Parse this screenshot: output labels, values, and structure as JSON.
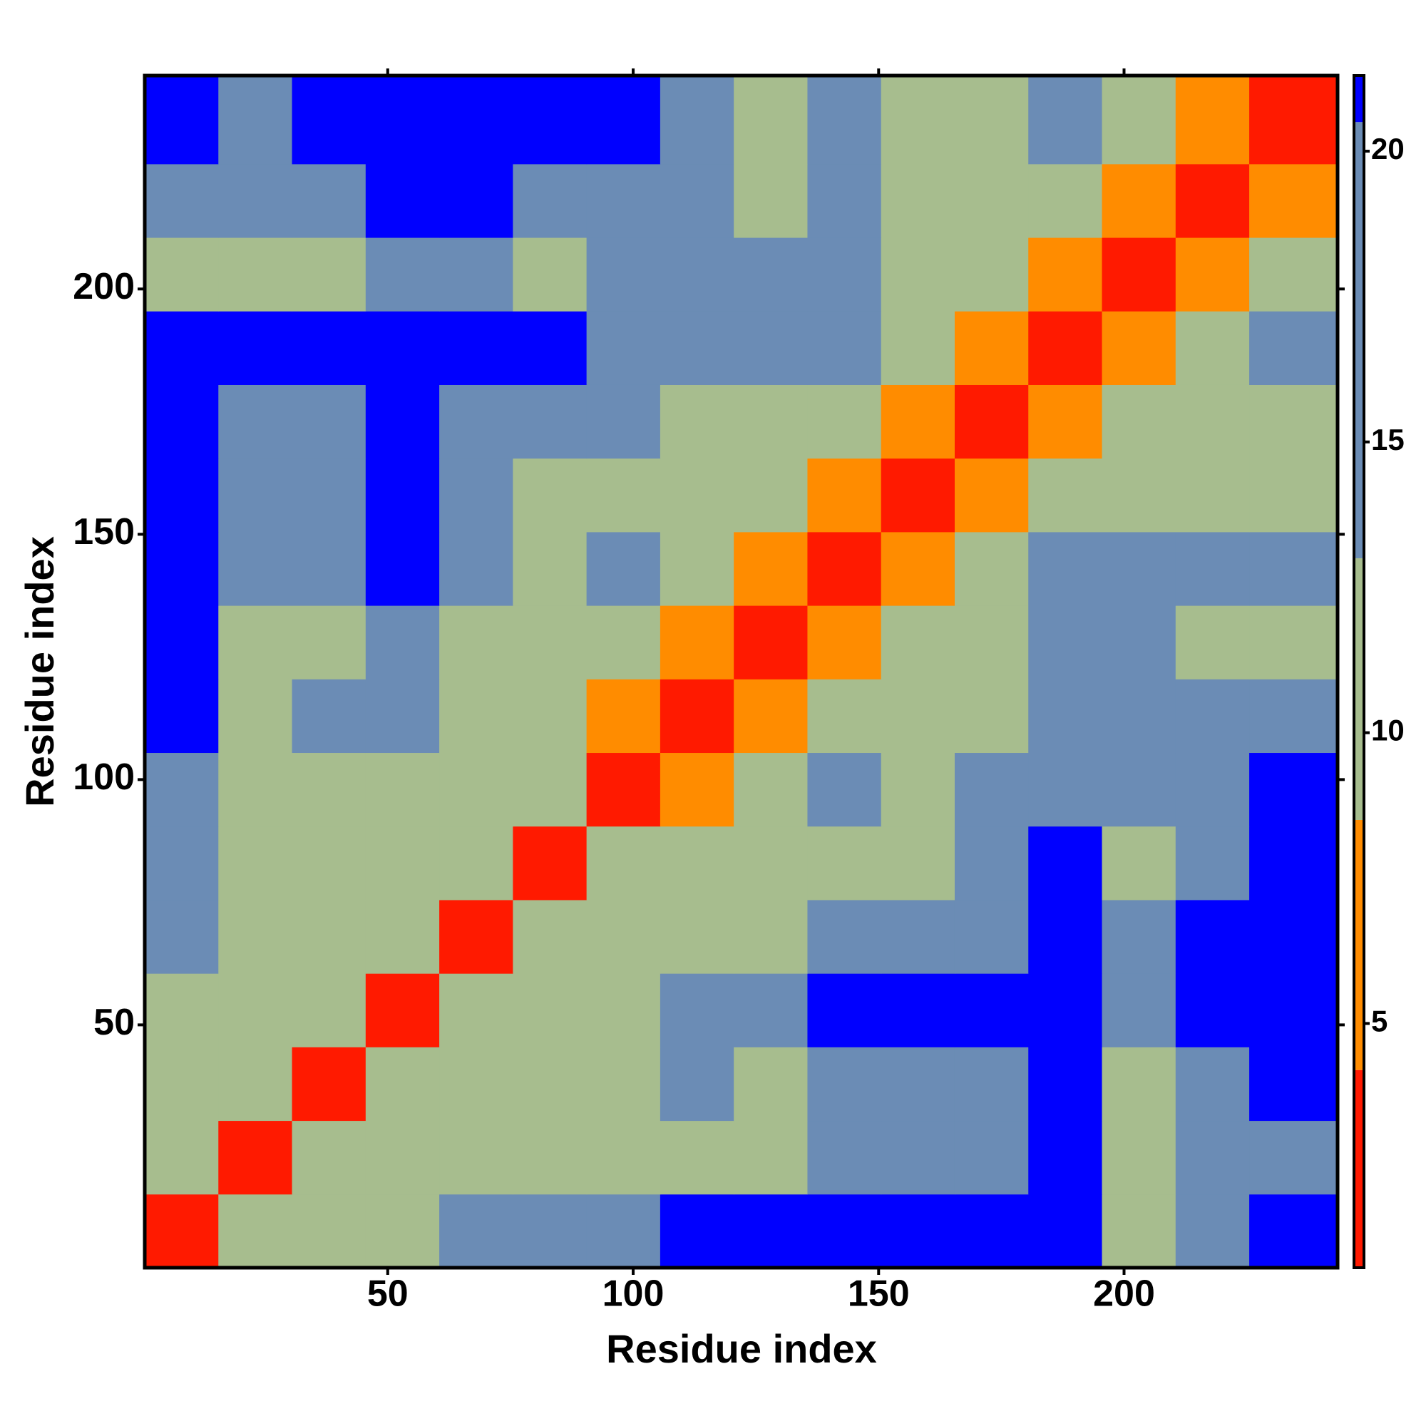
{
  "chart_data": {
    "type": "heatmap",
    "x_label": "Residue index",
    "y_label": "Residue index",
    "x_bins": [
      0.5,
      15.5,
      30.5,
      45.5,
      60.5,
      75.5,
      90.5,
      105.5,
      120.5,
      135.5,
      150.5,
      165.5,
      180.5,
      195.5,
      210.5,
      225.5,
      243.5
    ],
    "y_bins": [
      0.5,
      15.5,
      30.5,
      45.5,
      60.5,
      75.5,
      90.5,
      105.5,
      120.5,
      135.5,
      150.5,
      165.5,
      180.5,
      195.5,
      210.5,
      225.5,
      243.5
    ],
    "values": [
      [
        4,
        9,
        11,
        12,
        15,
        16,
        18,
        21,
        21,
        21,
        21,
        21,
        21,
        12,
        15,
        21
      ],
      [
        9,
        4,
        9,
        9,
        11,
        9,
        12,
        13,
        13,
        17,
        17,
        14,
        21,
        11,
        15,
        19
      ],
      [
        11,
        9,
        4,
        9,
        10,
        10,
        12,
        14,
        13,
        17,
        17,
        14,
        21,
        11,
        15,
        21
      ],
      [
        12,
        9,
        9,
        4,
        9,
        11,
        13,
        15,
        16,
        21,
        21,
        21,
        21,
        16,
        21,
        21
      ],
      [
        15,
        11,
        10,
        9,
        4,
        9,
        11,
        10,
        11,
        15,
        17,
        18,
        21,
        18,
        21,
        21
      ],
      [
        16,
        9,
        10,
        11,
        9,
        4,
        9,
        10,
        10,
        12,
        12,
        15,
        21,
        12,
        18,
        21
      ],
      [
        18,
        12,
        12,
        13,
        11,
        9,
        4,
        8,
        11,
        14,
        12,
        14,
        18,
        17,
        18,
        21
      ],
      [
        21,
        13,
        14,
        15,
        10,
        10,
        8,
        4,
        8,
        10,
        10,
        12,
        17,
        18,
        16,
        18
      ],
      [
        21,
        13,
        13,
        16,
        11,
        10,
        11,
        8,
        4,
        8,
        9,
        10,
        16,
        15,
        11,
        12
      ],
      [
        21,
        17,
        17,
        21,
        15,
        12,
        14,
        10,
        8,
        4,
        8,
        11,
        15,
        15,
        15,
        18
      ],
      [
        21,
        17,
        17,
        21,
        17,
        12,
        12,
        10,
        9,
        8,
        4,
        8,
        11,
        11,
        10,
        11
      ],
      [
        21,
        14,
        14,
        21,
        18,
        15,
        14,
        12,
        10,
        11,
        8,
        4,
        8,
        10,
        9,
        11
      ],
      [
        21,
        21,
        21,
        21,
        21,
        21,
        18,
        17,
        16,
        15,
        11,
        8,
        4,
        8,
        11,
        15
      ],
      [
        12,
        11,
        11,
        16,
        18,
        12,
        17,
        18,
        15,
        15,
        11,
        10,
        8,
        4,
        8,
        11
      ],
      [
        15,
        15,
        15,
        21,
        21,
        18,
        18,
        16,
        11,
        15,
        10,
        9,
        11,
        8,
        4,
        8
      ],
      [
        21,
        19,
        21,
        21,
        21,
        21,
        21,
        18,
        12,
        18,
        11,
        11,
        15,
        11,
        8,
        4
      ]
    ],
    "xlim": [
      0.5,
      243.5
    ],
    "ylim": [
      0.5,
      243.5
    ],
    "xticks": [
      50,
      100,
      150,
      200
    ],
    "yticks": [
      50,
      100,
      150,
      200
    ],
    "clim": [
      0.8,
      21.3
    ],
    "cticks": [
      5,
      10,
      15,
      20
    ],
    "colorscale": [
      [
        4.2,
        "#ff1a00"
      ],
      [
        8.5,
        "#ff8c00"
      ],
      [
        13,
        "#a7bd8e"
      ],
      [
        20.5,
        "#6b8cb5"
      ],
      [
        21.3,
        "#0000ff"
      ]
    ]
  }
}
